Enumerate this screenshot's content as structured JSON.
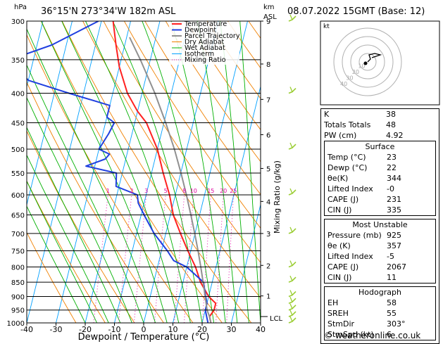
{
  "header": {
    "hpa_label": "hPa",
    "location": "36°15'N  273°34'W  182m  ASL",
    "km_label": "km",
    "asl_label": "ASL",
    "datetime": "08.07.2022  15GMT  (Base: 12)"
  },
  "colors": {
    "temperature": "#ff2020",
    "dewpoint": "#2040e0",
    "parcel": "#909090",
    "dry_adiabat": "#f08000",
    "wet_adiabat": "#00b000",
    "isotherm": "#00a0ff",
    "mixing_ratio": "#e000a0",
    "wind": "#9acd32"
  },
  "chart_data": {
    "type": "line",
    "title": "Skew-T log-P diagram",
    "xlabel": "Dewpoint / Temperature (°C)",
    "ylabel": "hPa",
    "mixing_ratio_axis_label": "Mixing Ratio (g/kg)",
    "xlim": [
      -40,
      40
    ],
    "ylim": [
      1000,
      300
    ],
    "x_ticks": [
      "-40",
      "-30",
      "-20",
      "-10",
      "0",
      "10",
      "20",
      "30",
      "40"
    ],
    "pressure_levels": [
      300,
      350,
      400,
      450,
      500,
      550,
      600,
      650,
      700,
      750,
      800,
      850,
      900,
      950,
      1000
    ],
    "pressure_labels": [
      "300",
      "350",
      "400",
      "450",
      "500",
      "550",
      "600",
      "650",
      "700",
      "750",
      "800",
      "850",
      "900",
      "950",
      "1000"
    ],
    "km_ticks": [
      {
        "label": "9",
        "p": 300
      },
      {
        "label": "8",
        "p": 356
      },
      {
        "label": "7",
        "p": 410
      },
      {
        "label": "6",
        "p": 472
      },
      {
        "label": "5",
        "p": 540
      },
      {
        "label": "4",
        "p": 616
      },
      {
        "label": "3",
        "p": 700
      },
      {
        "label": "2",
        "p": 795
      },
      {
        "label": "1",
        "p": 898
      }
    ],
    "lcl_label": "LCL",
    "lcl_pressure": 975,
    "mixing_ratio_labels": [
      "1",
      "2",
      "3",
      "5",
      "8",
      "10",
      "15",
      "20",
      "25"
    ],
    "mixing_ratio_values": [
      1,
      2,
      3,
      5,
      8,
      10,
      15,
      20,
      25
    ],
    "legend": [
      "Temperature",
      "Dewpoint",
      "Parcel Trajectory",
      "Dry Adiabat",
      "Wet Adiabat",
      "Isotherm",
      "Mixing Ratio"
    ],
    "series": [
      {
        "name": "Temperature",
        "points": [
          [
            300,
            -36
          ],
          [
            330,
            -33
          ],
          [
            360,
            -30
          ],
          [
            400,
            -25
          ],
          [
            430,
            -20
          ],
          [
            450,
            -16
          ],
          [
            500,
            -10
          ],
          [
            550,
            -6
          ],
          [
            600,
            -2
          ],
          [
            650,
            1
          ],
          [
            700,
            5
          ],
          [
            750,
            9
          ],
          [
            800,
            13
          ],
          [
            850,
            16
          ],
          [
            900,
            20
          ],
          [
            925,
            23
          ],
          [
            950,
            23
          ],
          [
            975,
            22
          ],
          [
            1000,
            23
          ]
        ]
      },
      {
        "name": "Dewpoint",
        "points": [
          [
            300,
            -41
          ],
          [
            330,
            -55
          ],
          [
            350,
            -68
          ],
          [
            380,
            -60
          ],
          [
            400,
            -45
          ],
          [
            420,
            -30
          ],
          [
            440,
            -30
          ],
          [
            450,
            -27
          ],
          [
            470,
            -28
          ],
          [
            500,
            -30
          ],
          [
            510,
            -26
          ],
          [
            520,
            -27
          ],
          [
            535,
            -33
          ],
          [
            550,
            -22
          ],
          [
            580,
            -21
          ],
          [
            600,
            -13
          ],
          [
            620,
            -12
          ],
          [
            650,
            -9
          ],
          [
            700,
            -4
          ],
          [
            750,
            2
          ],
          [
            780,
            5
          ],
          [
            800,
            10
          ],
          [
            850,
            17
          ],
          [
            900,
            19
          ],
          [
            925,
            20
          ],
          [
            950,
            20
          ],
          [
            975,
            21
          ],
          [
            1000,
            22
          ]
        ]
      },
      {
        "name": "Parcel Trajectory",
        "points": [
          [
            1000,
            23
          ],
          [
            975,
            22
          ],
          [
            950,
            20.6
          ],
          [
            900,
            18.8
          ],
          [
            850,
            16.9
          ],
          [
            800,
            14.8
          ],
          [
            750,
            12.5
          ],
          [
            700,
            9.9
          ],
          [
            650,
            7.0
          ],
          [
            600,
            3.8
          ],
          [
            550,
            0.1
          ],
          [
            500,
            -4.2
          ],
          [
            450,
            -9.4
          ],
          [
            400,
            -15.6
          ],
          [
            350,
            -23.4
          ],
          [
            320,
            -29.0
          ]
        ]
      }
    ],
    "wind_barb_pressures": [
      300,
      400,
      500,
      600,
      700,
      800,
      850,
      900,
      925,
      950,
      975,
      1000
    ]
  },
  "hodograph": {
    "unit_label": "kt",
    "ring_labels": [
      "10",
      "20",
      "30",
      "40"
    ]
  },
  "indices": [
    {
      "key": "K",
      "value": "38"
    },
    {
      "key": "Totals Totals",
      "value": "48"
    },
    {
      "key": "PW (cm)",
      "value": "4.92"
    }
  ],
  "surface": {
    "title": "Surface",
    "rows": [
      {
        "key": "Temp (°C)",
        "value": "23"
      },
      {
        "key": "Dewp (°C)",
        "value": "22"
      },
      {
        "key": "θe(K)",
        "value": "344"
      },
      {
        "key": "Lifted Index",
        "value": "-0"
      },
      {
        "key": "CAPE (J)",
        "value": "231"
      },
      {
        "key": "CIN (J)",
        "value": "335"
      }
    ]
  },
  "most_unstable": {
    "title": "Most Unstable",
    "rows": [
      {
        "key": "Pressure (mb)",
        "value": "925"
      },
      {
        "key": "θe (K)",
        "value": "357"
      },
      {
        "key": "Lifted Index",
        "value": "-5"
      },
      {
        "key": "CAPE (J)",
        "value": "2067"
      },
      {
        "key": "CIN (J)",
        "value": "11"
      }
    ]
  },
  "hodo_params": {
    "title": "Hodograph",
    "rows": [
      {
        "key": "EH",
        "value": "58"
      },
      {
        "key": "SREH",
        "value": "55"
      },
      {
        "key": "StmDir",
        "value": "303°"
      },
      {
        "key": "StmSpd (kt)",
        "value": "6"
      }
    ]
  },
  "footer": {
    "copyright": "© weatheronline.co.uk"
  }
}
